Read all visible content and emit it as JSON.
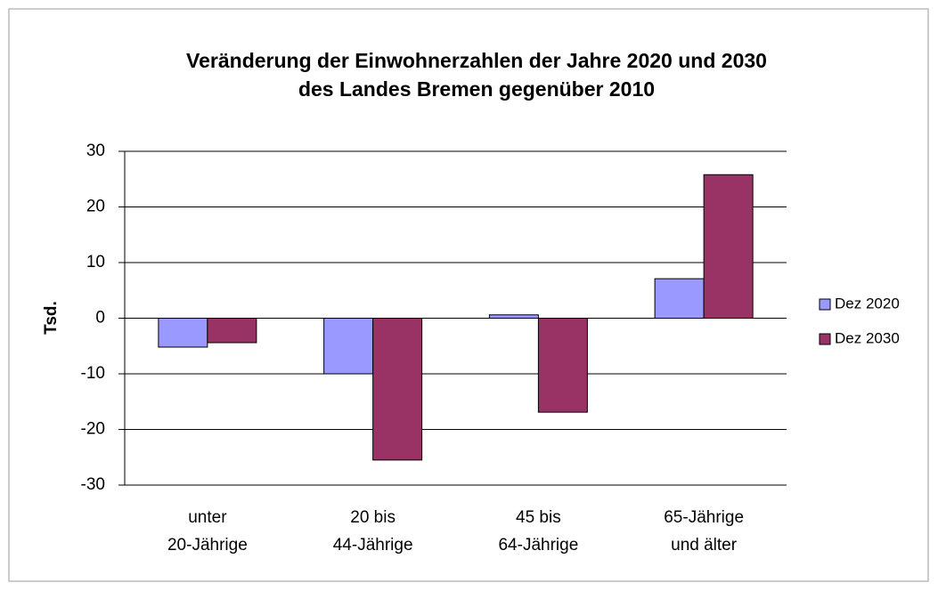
{
  "chart_data": {
    "type": "bar",
    "title": [
      "Veränderung der Einwohnerzahlen der Jahre 2020 und 2030",
      "des Landes Bremen gegenüber 2010"
    ],
    "ylabel": "Tsd.",
    "categories": [
      [
        "unter",
        "20-Jährige"
      ],
      [
        "20 bis",
        "44-Jährige"
      ],
      [
        "45 bis",
        "64-Jährige"
      ],
      [
        "65-Jährige",
        "und älter"
      ]
    ],
    "series": [
      {
        "name": "Dez 2020",
        "color": "#9999ff",
        "values": [
          -5.2,
          -10,
          0.6,
          7.1
        ]
      },
      {
        "name": "Dez 2030",
        "color": "#993366",
        "values": [
          -4.4,
          -25.5,
          -16.9,
          25.8
        ]
      }
    ],
    "ylim": [
      -30,
      30
    ],
    "yticks": [
      -30,
      -20,
      -10,
      0,
      10,
      20,
      30
    ],
    "grid": true,
    "legend": "right"
  }
}
